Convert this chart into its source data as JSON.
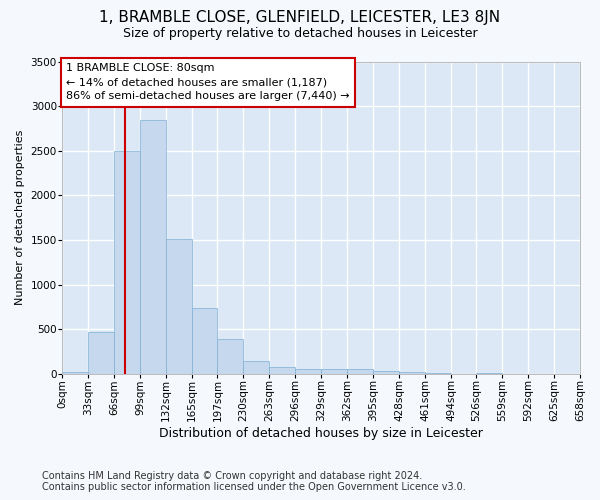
{
  "title": "1, BRAMBLE CLOSE, GLENFIELD, LEICESTER, LE3 8JN",
  "subtitle": "Size of property relative to detached houses in Leicester",
  "xlabel": "Distribution of detached houses by size in Leicester",
  "ylabel": "Number of detached properties",
  "bar_color": "#c5d8ed",
  "bar_edge_color": "#7eafd4",
  "background_color": "#dce8f5",
  "grid_color": "#ffffff",
  "bin_edges": [
    0,
    33,
    66,
    99,
    132,
    165,
    197,
    230,
    263,
    296,
    329,
    362,
    395,
    428,
    461,
    494,
    526,
    559,
    592,
    625,
    658
  ],
  "bin_labels": [
    "0sqm",
    "33sqm",
    "66sqm",
    "99sqm",
    "132sqm",
    "165sqm",
    "197sqm",
    "230sqm",
    "263sqm",
    "296sqm",
    "329sqm",
    "362sqm",
    "395sqm",
    "428sqm",
    "461sqm",
    "494sqm",
    "526sqm",
    "559sqm",
    "592sqm",
    "625sqm",
    "658sqm"
  ],
  "bar_heights": [
    20,
    470,
    2500,
    2840,
    1510,
    740,
    390,
    145,
    75,
    55,
    55,
    55,
    30,
    15,
    5,
    0,
    5,
    0,
    0,
    0
  ],
  "property_size": 80,
  "property_label": "1 BRAMBLE CLOSE: 80sqm",
  "annotation_line1": "← 14% of detached houses are smaller (1,187)",
  "annotation_line2": "86% of semi-detached houses are larger (7,440) →",
  "red_line_color": "#cc0000",
  "annotation_box_color": "#ffffff",
  "annotation_box_edge": "#cc0000",
  "ylim": [
    0,
    3500
  ],
  "yticks": [
    0,
    500,
    1000,
    1500,
    2000,
    2500,
    3000,
    3500
  ],
  "footer_line1": "Contains HM Land Registry data © Crown copyright and database right 2024.",
  "footer_line2": "Contains public sector information licensed under the Open Government Licence v3.0.",
  "title_fontsize": 11,
  "subtitle_fontsize": 9,
  "xlabel_fontsize": 9,
  "ylabel_fontsize": 8,
  "tick_fontsize": 7.5,
  "footer_fontsize": 7,
  "ann_fontsize": 8
}
